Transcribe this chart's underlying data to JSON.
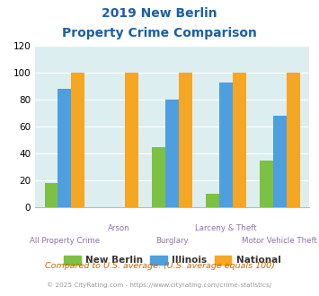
{
  "title_line1": "2019 New Berlin",
  "title_line2": "Property Crime Comparison",
  "categories": [
    "All Property Crime",
    "Arson",
    "Burglary",
    "Larceny & Theft",
    "Motor Vehicle Theft"
  ],
  "new_berlin": [
    18,
    0,
    45,
    10,
    35
  ],
  "illinois": [
    88,
    0,
    80,
    93,
    68
  ],
  "national": [
    100,
    100,
    100,
    100,
    100
  ],
  "color_new_berlin": "#7dc142",
  "color_illinois": "#4d9fe0",
  "color_national": "#f5a623",
  "ylim": [
    0,
    120
  ],
  "yticks": [
    0,
    20,
    40,
    60,
    80,
    100,
    120
  ],
  "background_color": "#ddeef0",
  "legend_labels": [
    "New Berlin",
    "Illinois",
    "National"
  ],
  "footnote1": "Compared to U.S. average. (U.S. average equals 100)",
  "footnote2": "© 2025 CityRating.com - https://www.cityrating.com/crime-statistics/",
  "title_color": "#1a5fa8",
  "footnote1_color": "#cc6600",
  "footnote2_color": "#999999",
  "xlabel_color": "#9370ab",
  "legend_text_color": "#333333"
}
